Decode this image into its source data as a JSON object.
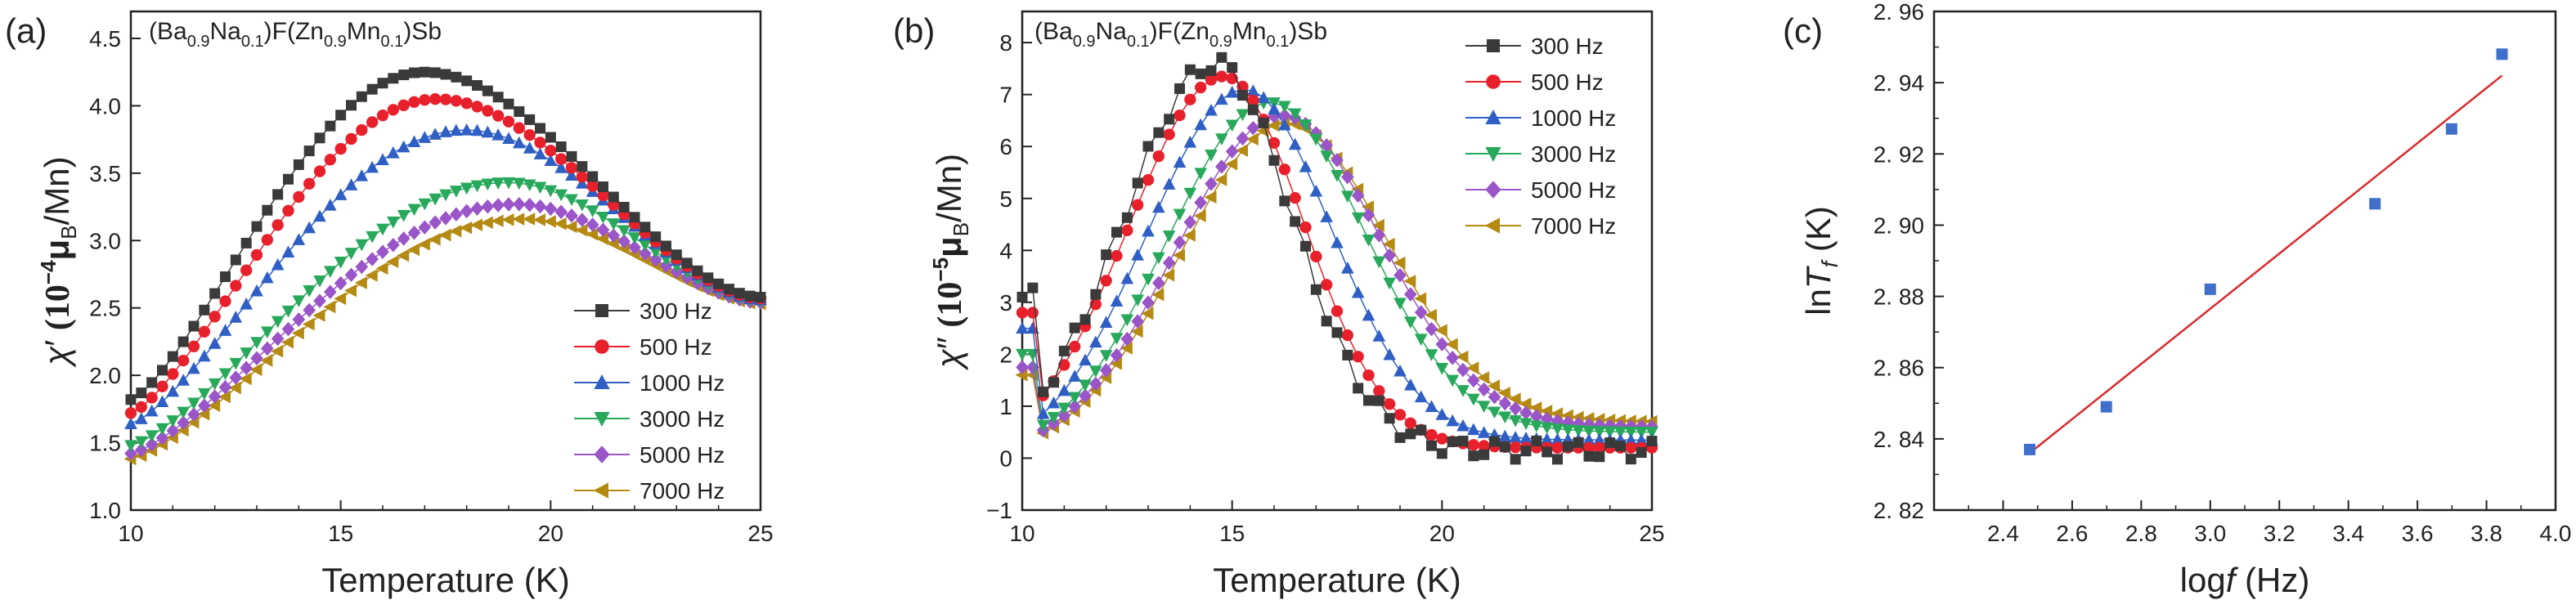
{
  "figure": {
    "panels": [
      {
        "tag": "(a)",
        "compound": {
          "a": "(Ba",
          "s1": "0.9",
          "b": "Na",
          "s2": "0.1",
          "c": ")F(Zn",
          "s3": "0.9",
          "d": "Mn",
          "s4": "0.1",
          "e": ")Sb"
        },
        "ylabel": {
          "chi": "χ",
          "prime": "′ ",
          "p1": "(10",
          "exp": "−4",
          "mu": "μ",
          "sub": "B",
          "p2": "/Mn)"
        },
        "xlabel": "Temperature (K)"
      },
      {
        "tag": "(b)",
        "compound": {
          "a": "(Ba",
          "s1": "0.9",
          "b": "Na",
          "s2": "0.1",
          "c": ")F(Zn",
          "s3": "0.9",
          "d": "Mn",
          "s4": "0.1",
          "e": ")Sb"
        },
        "ylabel": {
          "chi": "χ",
          "prime": "″ ",
          "p1": "(10",
          "exp": "−5",
          "mu": "μ",
          "sub": "B",
          "p2": "/Mn)"
        },
        "xlabel": "Temperature (K)"
      },
      {
        "tag": "(c)",
        "ylabel": {
          "a": "ln",
          "b": "T",
          "c": "f",
          "d": " (K)"
        },
        "xlabel": {
          "a": "log",
          "b": "f",
          "c": " (Hz)"
        }
      }
    ]
  },
  "chart_data": [
    {
      "type": "scatter",
      "title": "(Ba0.9Na0.1)F(Zn0.9Mn0.1)Sb",
      "xlabel": "Temperature (K)",
      "ylabel": "χ′ (10^-4 μB/Mn)",
      "xlim": [
        10,
        25
      ],
      "ylim": [
        1.0,
        4.7
      ],
      "xticks": [
        10,
        15,
        20,
        25
      ],
      "yticks": [
        1.0,
        1.5,
        2.0,
        2.5,
        3.0,
        3.5,
        4.0,
        4.5
      ],
      "x_range": [
        10,
        25
      ],
      "x_step": 0.25,
      "legend_position": "bottom-right",
      "series": [
        {
          "name": "300 Hz",
          "color": "#3a3a3a",
          "marker": "square",
          "y0": 1.82,
          "peak_x": 17.0,
          "peak_y": 4.25,
          "y_end": 2.58
        },
        {
          "name": "500 Hz",
          "color": "#e8202c",
          "marker": "circle",
          "y0": 1.72,
          "peak_x": 17.3,
          "peak_y": 4.05,
          "y_end": 2.57
        },
        {
          "name": "1000 Hz",
          "color": "#2f5fc4",
          "marker": "triangle-up",
          "y0": 1.64,
          "peak_x": 18.0,
          "peak_y": 3.82,
          "y_end": 2.56
        },
        {
          "name": "3000 Hz",
          "color": "#27a85a",
          "marker": "triangle-down",
          "y0": 1.48,
          "peak_x": 19.0,
          "peak_y": 3.43,
          "y_end": 2.55
        },
        {
          "name": "5000 Hz",
          "color": "#9a55c9",
          "marker": "diamond",
          "y0": 1.42,
          "peak_x": 19.2,
          "peak_y": 3.27,
          "y_end": 2.54
        },
        {
          "name": "7000 Hz",
          "color": "#b58a12",
          "marker": "triangle-left",
          "y0": 1.38,
          "peak_x": 19.4,
          "peak_y": 3.16,
          "y_end": 2.53
        }
      ]
    },
    {
      "type": "scatter",
      "title": "(Ba0.9Na0.1)F(Zn0.9Mn0.1)Sb",
      "xlabel": "Temperature (K)",
      "ylabel": "χ″ (10^-5 μB/Mn)",
      "xlim": [
        10,
        25
      ],
      "ylim": [
        -1,
        8.6
      ],
      "xticks": [
        10,
        15,
        20,
        25
      ],
      "yticks": [
        -1,
        0,
        1,
        2,
        3,
        4,
        5,
        6,
        7,
        8
      ],
      "x_range": [
        10,
        25
      ],
      "x_step": 0.25,
      "legend_position": "top-right",
      "series": [
        {
          "name": "300 Hz",
          "color": "#3a3a3a",
          "marker": "square",
          "y0": 3.3,
          "peak_x": 14.6,
          "peak_y": 7.6,
          "y_end": 0.15,
          "w_left": 3.1,
          "w_right": 2.6
        },
        {
          "name": "500 Hz",
          "color": "#e8202c",
          "marker": "circle",
          "y0": 3.0,
          "peak_x": 14.8,
          "peak_y": 7.35,
          "y_end": 0.2,
          "w_left": 3.2,
          "w_right": 2.7
        },
        {
          "name": "1000 Hz",
          "color": "#2f5fc4",
          "marker": "triangle-up",
          "y0": 2.7,
          "peak_x": 15.3,
          "peak_y": 7.1,
          "y_end": 0.35,
          "w_left": 3.3,
          "w_right": 2.9
        },
        {
          "name": "3000 Hz",
          "color": "#27a85a",
          "marker": "triangle-down",
          "y0": 2.2,
          "peak_x": 15.9,
          "peak_y": 6.85,
          "y_end": 0.5,
          "w_left": 3.5,
          "w_right": 3.2
        },
        {
          "name": "5000 Hz",
          "color": "#9a55c9",
          "marker": "diamond",
          "y0": 1.95,
          "peak_x": 16.2,
          "peak_y": 6.6,
          "y_end": 0.6,
          "w_left": 3.6,
          "w_right": 3.3
        },
        {
          "name": "7000 Hz",
          "color": "#b58a12",
          "marker": "triangle-left",
          "y0": 1.8,
          "peak_x": 16.3,
          "peak_y": 6.45,
          "y_end": 0.7,
          "w_left": 3.6,
          "w_right": 3.4
        }
      ]
    },
    {
      "type": "scatter",
      "title": "",
      "xlabel": "log f (Hz)",
      "ylabel": "ln Tf (K)",
      "xlim": [
        2.2,
        4.0
      ],
      "ylim": [
        2.82,
        2.96
      ],
      "xticks": [
        2.4,
        2.6,
        2.8,
        3.0,
        3.2,
        3.4,
        3.6,
        3.8,
        4.0
      ],
      "yticks": [
        2.82,
        2.84,
        2.86,
        2.88,
        2.9,
        2.92,
        2.94,
        2.96
      ],
      "points": [
        {
          "x": 2.477,
          "y": 2.837
        },
        {
          "x": 2.699,
          "y": 2.849
        },
        {
          "x": 3.0,
          "y": 2.882
        },
        {
          "x": 3.477,
          "y": 2.906
        },
        {
          "x": 3.699,
          "y": 2.927
        },
        {
          "x": 3.845,
          "y": 2.948
        }
      ],
      "fit": {
        "x": [
          2.477,
          3.845
        ],
        "y": [
          2.836,
          2.942
        ]
      },
      "point_color": "#3f6fcb",
      "fit_color": "#d92b2b"
    }
  ]
}
